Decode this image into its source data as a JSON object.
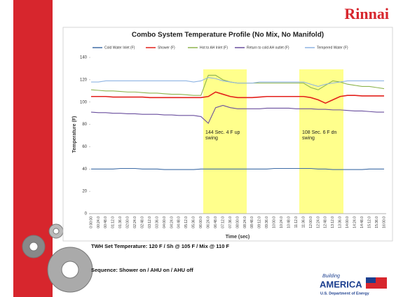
{
  "slide": {
    "logo": "Rinnai",
    "notes": [
      "TWH Set Temperature: 120 F / Sh @ 105 F / Mix @ 110 F",
      "Sequence: Shower on / AHU on / AHU off"
    ],
    "footer_logo": "AMERICA",
    "footer_logo_script": "Building",
    "footer_logo_sub": "U.S. Department of Energy"
  },
  "chart_data": {
    "type": "line",
    "title": "Combo System Temperature Profile (No Mix, No Manifold)",
    "x_label": "Time (sec)",
    "y_label": "Temperature (F)",
    "annotations": [
      "144 Sec. 4 F up swing",
      "108 Sec. 6 F dn swing"
    ],
    "categories": [
      "0:00:00",
      "00:24.0",
      "00:48.0",
      "01:12.0",
      "01:36.0",
      "02:00.0",
      "02:24.0",
      "02:48.0",
      "03:12.0",
      "03:36.0",
      "04:00.0",
      "04:24.0",
      "04:48.0",
      "05:12.0",
      "05:36.0",
      "06:00.0",
      "06:24.0",
      "06:48.0",
      "07:12.0",
      "07:36.0",
      "08:00.0",
      "08:24.0",
      "08:48.0",
      "09:12.0",
      "09:36.0",
      "10:00.0",
      "10:24.0",
      "10:48.0",
      "11:12.0",
      "11:36.0",
      "12:00.0",
      "12:24.0",
      "12:48.0",
      "13:12.0",
      "13:36.0",
      "14:00.0",
      "14:24.0",
      "14:48.0",
      "15:12.0",
      "15:36.0",
      "16:00.0"
    ],
    "ylim": [
      0,
      140
    ],
    "yticks": [
      0,
      20,
      40,
      60,
      80,
      100,
      120,
      140
    ],
    "grid": false,
    "series": [
      {
        "name": "Cold Water Inlet (F)",
        "color": "#3f6ca6",
        "values": [
          40,
          40,
          40,
          40,
          40.5,
          40.5,
          40.5,
          40,
          40,
          40,
          39.5,
          39.5,
          39.5,
          39.5,
          39.5,
          40,
          40,
          40,
          40,
          40,
          40,
          40,
          40,
          40,
          40,
          40.5,
          40.5,
          40.5,
          40.5,
          40.5,
          40.5,
          40,
          40,
          39.5,
          39.5,
          39.5,
          39.5,
          39.5,
          40,
          40,
          40
        ]
      },
      {
        "name": "Shower (F)",
        "color": "#e3201b",
        "values": [
          105,
          105,
          105,
          104.5,
          104.5,
          104.5,
          104.5,
          104.5,
          104,
          104,
          104,
          104,
          104,
          104,
          104,
          104,
          105,
          109,
          107,
          105,
          104,
          104,
          104,
          104.5,
          105,
          105,
          105,
          105,
          105,
          105,
          104,
          102,
          99,
          102,
          105,
          106,
          106,
          105.5,
          105.5,
          105.5,
          105.5
        ]
      },
      {
        "name": "Hot to AH Inlet (F)",
        "color": "#8db44e",
        "values": [
          111,
          110.5,
          110,
          110,
          109.5,
          109,
          109,
          108.5,
          108,
          108,
          107.5,
          107,
          107,
          106.5,
          106,
          106,
          124,
          124,
          120,
          118,
          117,
          117,
          117,
          117,
          117,
          117,
          117,
          117,
          117,
          117,
          113,
          111,
          115,
          119,
          118,
          116,
          115,
          114,
          114,
          113,
          112
        ]
      },
      {
        "name": "Return to cold AH outlet (F)",
        "color": "#6a4f9e",
        "values": [
          91,
          90.5,
          90.5,
          90,
          90,
          89.5,
          89.5,
          89,
          89,
          89,
          88.5,
          88.5,
          88,
          88,
          88,
          87,
          81,
          95,
          97,
          95,
          94,
          94,
          94,
          94,
          94.5,
          94.5,
          94.5,
          94.5,
          94,
          94,
          94,
          93.5,
          93.5,
          93,
          93,
          92.5,
          92,
          92,
          91.5,
          91,
          91
        ]
      },
      {
        "name": "Tempered Water (F)",
        "color": "#8fb4e3",
        "values": [
          118,
          118,
          119,
          119,
          119,
          119,
          119,
          119,
          119,
          119,
          119,
          119,
          119,
          119,
          118,
          119,
          122,
          121,
          119,
          118,
          117,
          117,
          117,
          118,
          118,
          118,
          118,
          118,
          118,
          118,
          116,
          114,
          116,
          117,
          118,
          119,
          119,
          119,
          119,
          119,
          119
        ]
      }
    ]
  }
}
